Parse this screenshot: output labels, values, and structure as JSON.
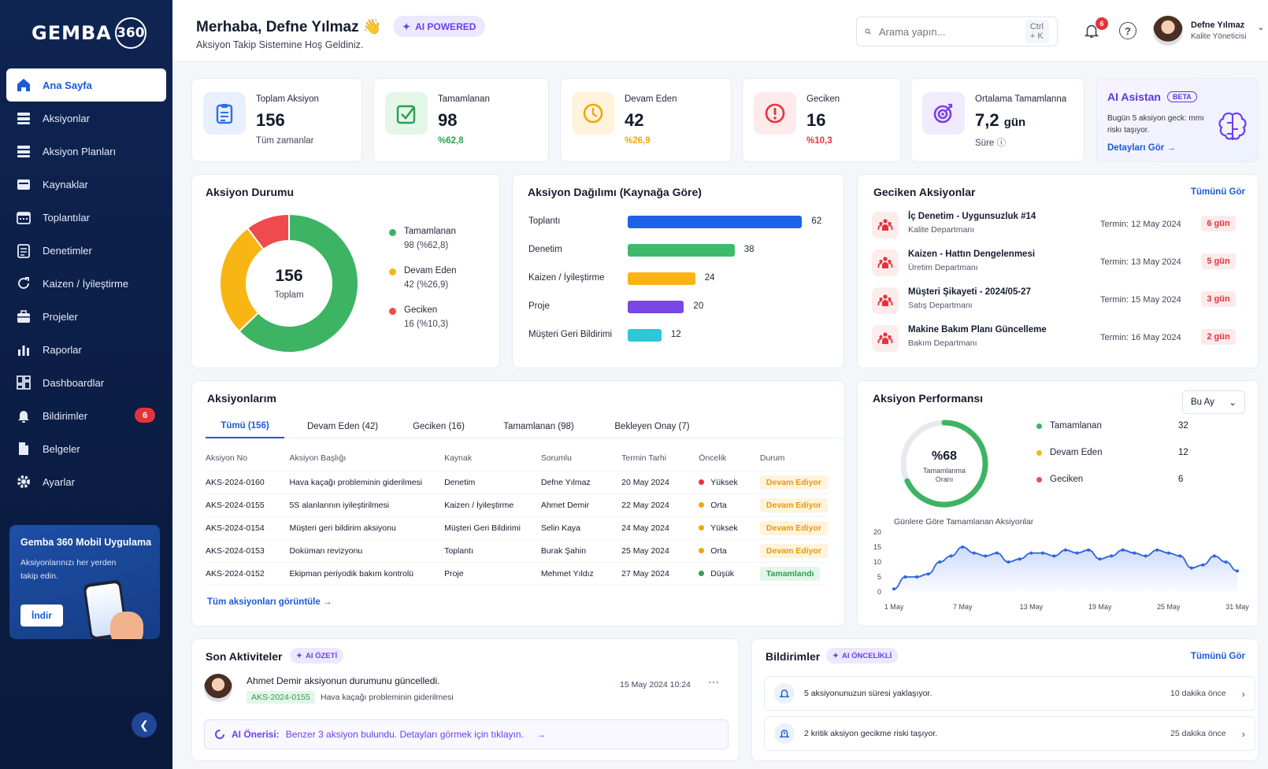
{
  "brand": {
    "name": "GEMBA",
    "num": "360"
  },
  "sidebar": {
    "items": [
      {
        "label": "Ana Sayfa",
        "icon": "home-icon"
      },
      {
        "label": "Aksiyonlar",
        "icon": "list-icon"
      },
      {
        "label": "Aksiyon Planları",
        "icon": "list-icon"
      },
      {
        "label": "Kaynaklar",
        "icon": "box-icon"
      },
      {
        "label": "Toplantılar",
        "icon": "calendar-icon"
      },
      {
        "label": "Denetimler",
        "icon": "clipboard-icon"
      },
      {
        "label": "Kaizen / İyileştirme",
        "icon": "refresh-icon"
      },
      {
        "label": "Projeler",
        "icon": "briefcase-icon"
      },
      {
        "label": "Raporlar",
        "icon": "chart-icon"
      },
      {
        "label": "Dashboardlar",
        "icon": "dashboard-icon"
      },
      {
        "label": "Bildirimler",
        "icon": "bell-icon",
        "badge": "6"
      },
      {
        "label": "Belgeler",
        "icon": "document-icon"
      },
      {
        "label": "Ayarlar",
        "icon": "gear-icon"
      }
    ],
    "promo": {
      "title": "Gemba 360 Mobil Uygulama",
      "text": "Aksiyonlarınızı her yerden takip edin.",
      "button": "İndir"
    }
  },
  "header": {
    "greeting": "Merhaba, Defne Yılmaz 👋",
    "subtitle": "Aksiyon Takip Sistemine Hoş Geldiniz.",
    "ai_badge": "AI POWERED",
    "search": {
      "placeholder": "Arama yapın...",
      "shortcut": "Ctrl + K"
    },
    "notif_count": "6",
    "user": {
      "name": "Defne Yılmaz",
      "role": "Kalite Yöneticisi"
    }
  },
  "stats": [
    {
      "label": "Toplam Aksiyon",
      "value": "156",
      "unit": "",
      "sub": "Tüm zamanlar",
      "color": "#2f6fe0",
      "bg": "#e8f0fd",
      "sub_color": "#3f4759",
      "icon": "clipboard-icon"
    },
    {
      "label": "Tamamlanan",
      "value": "98",
      "unit": "",
      "sub": "%62,8",
      "color": "#2e9e52",
      "bg": "#e3f6e8",
      "sub_color": "#2e9e52",
      "icon": "check-square-icon"
    },
    {
      "label": "Devam Eden",
      "value": "42",
      "unit": "",
      "sub": "%26,9",
      "color": "#f2a60c",
      "bg": "#fff3dc",
      "sub_color": "#f2a60c",
      "icon": "clock-icon"
    },
    {
      "label": "Geciken",
      "value": "16",
      "unit": "",
      "sub": "%10,3",
      "color": "#e5333b",
      "bg": "#fdeaea",
      "sub_color": "#e5333b",
      "icon": "alert-icon"
    },
    {
      "label": "Ortalama Tamamlanna",
      "value": "7,2",
      "unit": "gün",
      "sub": "Süre ⓘ",
      "color": "#7a3fe6",
      "bg": "#f1ebfd",
      "sub_color": "#3f4759",
      "icon": "target-icon"
    }
  ],
  "ai_assistant": {
    "title": "AI Asistan",
    "beta": "BETA",
    "text": "Bugün 5 aksiyon geck: mmı riskı taşıyor.",
    "link": "Detayları Gör →"
  },
  "status_chart": {
    "title": "Aksiyon Durumu",
    "center_value": "156",
    "center_label": "Toplam",
    "legend": [
      {
        "name": "Tamamlanan",
        "detail": "98 (%62,8)",
        "color": "#3db463"
      },
      {
        "name": "Devam Eden",
        "detail": "42 (%26,9)",
        "color": "#f8b614"
      },
      {
        "name": "Geciken",
        "detail": "16 (%10,3)",
        "color": "#ef4b4f"
      }
    ]
  },
  "chart_data": [
    {
      "type": "pie",
      "title": "Aksiyon Durumu",
      "categories": [
        "Tamamlanan",
        "Devam Eden",
        "Geciken"
      ],
      "values": [
        98,
        42,
        16
      ]
    },
    {
      "type": "bar",
      "title": "Aksiyon Dağılımı (Kaynağa Göre)",
      "categories": [
        "Toplantı",
        "Denetim",
        "Kaizen / İyileştirme",
        "Proje",
        "Müşteri Geri Bildirimi"
      ],
      "values": [
        62,
        38,
        24,
        20,
        12
      ],
      "colors": [
        "#1d63e8",
        "#3dba6a",
        "#fbb414",
        "#7b46e6",
        "#2fc6d8"
      ],
      "xlim": [
        0,
        70
      ]
    },
    {
      "type": "area",
      "title": "Günlere Göre Tamamlanan Aksiyonlar",
      "x": [
        "1 May",
        "2 May",
        "3 May",
        "4 May",
        "5 May",
        "6 May",
        "7 May",
        "8 May",
        "9 May",
        "10 May",
        "11 May",
        "12 May",
        "13 May",
        "14 May",
        "15 May",
        "16 May",
        "17 May",
        "18 May",
        "19 May",
        "20 May",
        "21 May",
        "22 May",
        "23 May",
        "24 May",
        "25 May",
        "26 May",
        "27 May",
        "28 May",
        "29 May",
        "30 May",
        "31 May"
      ],
      "xticks": [
        "1 May",
        "7 May",
        "13 May",
        "19 May",
        "25 May",
        "31 May"
      ],
      "values": [
        1,
        5,
        5,
        6,
        10,
        12,
        15,
        13,
        12,
        13,
        10,
        11,
        13,
        13,
        12,
        14,
        13,
        14,
        11,
        12,
        14,
        13,
        12,
        14,
        13,
        12,
        8,
        9,
        12,
        10,
        7
      ],
      "ylim": [
        0,
        20
      ],
      "yticks": [
        0,
        5,
        10,
        15,
        20
      ]
    }
  ],
  "distribution": {
    "title": "Aksiyon Dağılımı (Kaynağa Göre)",
    "bars": [
      {
        "label": "Toplantı",
        "value": "62"
      },
      {
        "label": "Denetim",
        "value": "38"
      },
      {
        "label": "Kaizen / İyileştirme",
        "value": "24"
      },
      {
        "label": "Proje",
        "value": "20"
      },
      {
        "label": "Müşteri Geri Bildirimi",
        "value": "12"
      }
    ]
  },
  "overdue": {
    "title": "Geciken Aksiyonlar",
    "link": "Tümünü Gör",
    "items": [
      {
        "title": "İç Denetim - Uygunsuzluk #14",
        "dept": "Kalite Departmanı",
        "due": "Termin: 12 May 2024",
        "days": "6 gün"
      },
      {
        "title": "Kaizen - Hattın Dengelenmesi",
        "dept": "Üretim Departmanı",
        "due": "Termin: 13 May 2024",
        "days": "5 gün"
      },
      {
        "title": "Müşteri Şikayeti - 2024/05-27",
        "dept": "Satış Departmanı",
        "due": "Termin: 15 May 2024",
        "days": "3 gün"
      },
      {
        "title": "Makine Bakım Planı Güncelleme",
        "dept": "Bakım Departmanı",
        "due": "Termin: 16 May 2024",
        "days": "2 gün"
      }
    ]
  },
  "my_actions": {
    "title": "Aksiyonlarım",
    "tabs": [
      "Tümü (156)",
      "Devam Eden (42)",
      "Geciken (16)",
      "Tamamlanan (98)",
      "Bekleyen Onay (7)"
    ],
    "columns": [
      "Aksiyon No",
      "Aksiyon Başlığı",
      "Kaynak",
      "Sorumlu",
      "Termin Tarhi",
      "Öncelik",
      "Durum"
    ],
    "rows": [
      {
        "no": "AKS-2024-0160",
        "title": "Hava kaçağı probleminin giderilmesi",
        "source": "Denetim",
        "owner": "Defne Yılmaz",
        "due": "20 May 2024",
        "priority": "Yüksek",
        "pcolor": "#e5333b",
        "status": "Devam Ediyor",
        "skind": "prog"
      },
      {
        "no": "AKS-2024-0155",
        "title": "5S alanlarının iyileştirilmesi",
        "source": "Kaizen / İyileştirme",
        "owner": "Ahmet Demir",
        "due": "22 May 2024",
        "priority": "Orta",
        "pcolor": "#f2a60c",
        "status": "Devam Ediyor",
        "skind": "prog"
      },
      {
        "no": "AKS-2024-0154",
        "title": "Müşteri geri bildirim aksiyonu",
        "source": "Müşteri Geri Bildirimi",
        "owner": "Selin Kaya",
        "due": "24 May 2024",
        "priority": "Yüksek",
        "pcolor": "#f2a60c",
        "status": "Devam Ediyor",
        "skind": "prog"
      },
      {
        "no": "AKS-2024-0153",
        "title": "Doküman revizyonu",
        "source": "Toplantı",
        "owner": "Burak Şahin",
        "due": "25 May 2024",
        "priority": "Orta",
        "pcolor": "#f2a60c",
        "status": "Devam Ediyor",
        "skind": "prog"
      },
      {
        "no": "AKS-2024-0152",
        "title": "Ekipman periyodik bakım kontrolü",
        "source": "Proje",
        "owner": "Mehmet Yıldız",
        "due": "27 May 2024",
        "priority": "Düşük",
        "pcolor": "#2e9e52",
        "status": "Tamamlandı",
        "skind": "done"
      }
    ],
    "link": "Tüm aksiyonları görüntüle →"
  },
  "performance": {
    "title": "Aksiyon Performansı",
    "period": "Bu Ay",
    "gauge_value": "%68",
    "gauge_label": "Tamamlanma Oranı",
    "gauge_fraction": 0.68,
    "legend": [
      {
        "name": "Tamamlanan",
        "value": "32",
        "color": "#3db463"
      },
      {
        "name": "Devam Eden",
        "value": "12",
        "color": "#f8b614"
      },
      {
        "name": "Geciken",
        "value": "6",
        "color": "#ef4b4f"
      }
    ],
    "chart_title": "Günlere Göre Tamamlanan Aksiyonlar"
  },
  "activities": {
    "title": "Son Aktiviteler",
    "ai_badge": "AI ÖZETİ",
    "item": {
      "actor": "Ahmet Demir",
      "action": " aksiyonun durumunu güncelledi.",
      "code": "AKS-2024-0155",
      "desc": "Hava kaçağı probleminin giderilmesi",
      "time": "15 May 2024 10:24"
    },
    "ai_label": "AI Önerisi:",
    "ai_text": "Benzer 3 aksiyon bulundu. Detayları görmek için tıklayın."
  },
  "notifications": {
    "title": "Bildirimler",
    "ai_badge": "AI ÖNCELİKLİ",
    "link": "Tümünü Gör",
    "items": [
      {
        "text": "5 aksiyonunuzun süresi yaklaşıyor.",
        "time": "10 dakika önce"
      },
      {
        "text": "2 kritik aksiyon gecikme riski taşıyor.",
        "time": "25 dakika önce"
      }
    ]
  }
}
